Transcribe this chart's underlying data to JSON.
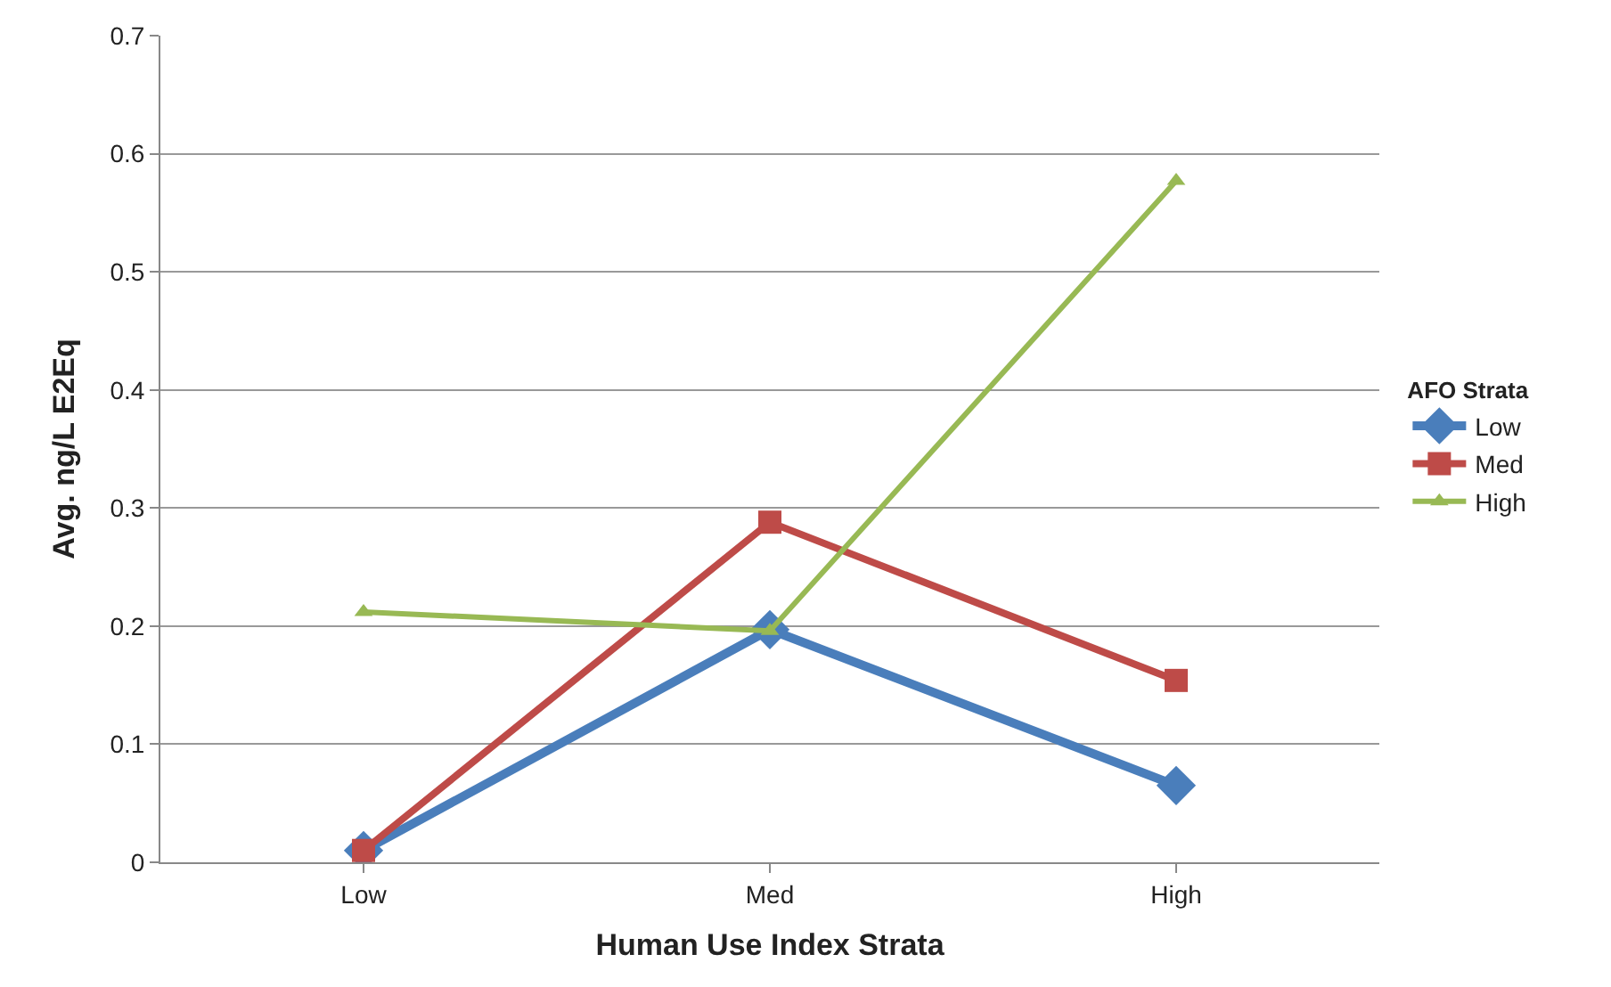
{
  "chart_data": {
    "type": "line",
    "xlabel": "Human Use Index Strata",
    "ylabel": "Avg. ng/L E2Eq",
    "legend_title": "AFO Strata",
    "categories": [
      "Low",
      "Med",
      "High"
    ],
    "series": [
      {
        "name": "Low",
        "color": "#4a7ebb",
        "marker": "diamond",
        "values": [
          0.01,
          0.197,
          0.065
        ]
      },
      {
        "name": "Med",
        "color": "#be4b48",
        "marker": "square",
        "values": [
          0.01,
          0.288,
          0.154
        ]
      },
      {
        "name": "High",
        "color": "#98b954",
        "marker": "triangle",
        "values": [
          0.212,
          0.196,
          0.577
        ]
      }
    ],
    "ylim": [
      0,
      0.7
    ],
    "yticks": [
      {
        "value": 0,
        "label": "0"
      },
      0.1,
      0.2,
      0.3,
      0.4,
      0.5,
      0.6,
      0.7
    ],
    "grid": "y",
    "legend": "right",
    "line_style": "solid"
  }
}
